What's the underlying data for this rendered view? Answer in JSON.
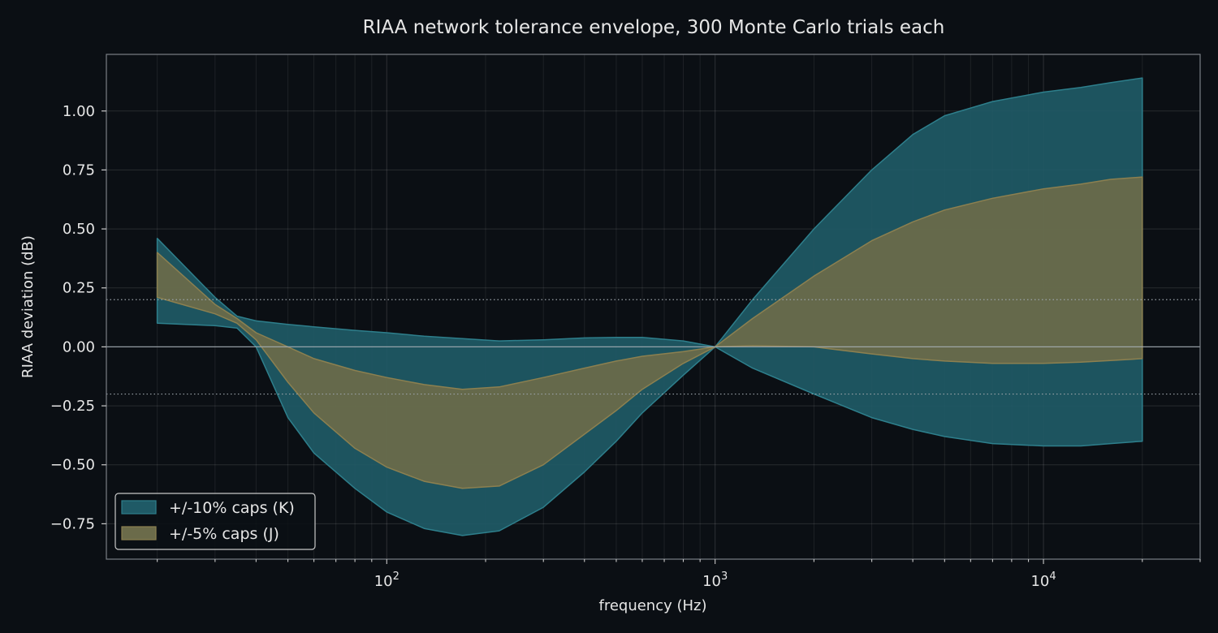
{
  "chart_data": {
    "type": "area",
    "title": "RIAA network tolerance envelope, 300 Monte Carlo trials each",
    "xlabel": "frequency (Hz)",
    "ylabel": "RIAA deviation (dB)",
    "x_scale": "log",
    "xlim": [
      14,
      30000
    ],
    "ylim": [
      -0.9,
      1.24
    ],
    "x_ticks": [
      {
        "value": 100,
        "base": "10",
        "exp": "2"
      },
      {
        "value": 1000,
        "base": "10",
        "exp": "3"
      },
      {
        "value": 10000,
        "base": "10",
        "exp": "4"
      }
    ],
    "y_ticks": [
      {
        "value": 1.0,
        "label": "1.00"
      },
      {
        "value": 0.75,
        "label": "0.75"
      },
      {
        "value": 0.5,
        "label": "0.50"
      },
      {
        "value": 0.25,
        "label": "0.25"
      },
      {
        "value": 0.0,
        "label": "0.00"
      },
      {
        "value": -0.25,
        "label": "−0.25"
      },
      {
        "value": -0.5,
        "label": "−0.50"
      },
      {
        "value": -0.75,
        "label": "−0.75"
      }
    ],
    "reference_lines": [
      {
        "y": 0.0,
        "style": "solid"
      },
      {
        "y": 0.2,
        "style": "dotted"
      },
      {
        "y": -0.2,
        "style": "dotted"
      }
    ],
    "grid": true,
    "legend_position": "lower-left",
    "series": [
      {
        "name": "+/-10% caps (K)",
        "color": "#1f5a66",
        "edge_color": "#2e7f8c",
        "x": [
          20,
          30,
          35,
          40,
          50,
          60,
          80,
          100,
          130,
          170,
          220,
          300,
          400,
          500,
          600,
          800,
          1000,
          1300,
          2000,
          3000,
          4000,
          5000,
          7000,
          10000,
          13000,
          16000,
          20000
        ],
        "upper": [
          0.46,
          0.21,
          0.13,
          0.11,
          0.095,
          0.085,
          0.07,
          0.06,
          0.045,
          0.035,
          0.025,
          0.03,
          0.038,
          0.04,
          0.04,
          0.025,
          0.0,
          0.2,
          0.5,
          0.75,
          0.9,
          0.98,
          1.04,
          1.08,
          1.1,
          1.12,
          1.14
        ],
        "lower": [
          0.1,
          0.09,
          0.08,
          0.0,
          -0.3,
          -0.45,
          -0.6,
          -0.7,
          -0.77,
          -0.8,
          -0.78,
          -0.68,
          -0.53,
          -0.4,
          -0.28,
          -0.12,
          0.0,
          -0.09,
          -0.2,
          -0.3,
          -0.35,
          -0.38,
          -0.41,
          -0.42,
          -0.42,
          -0.41,
          -0.4
        ]
      },
      {
        "name": "+/-5% caps (J)",
        "color": "#6b6b4a",
        "edge_color": "#8c8050",
        "x": [
          20,
          30,
          35,
          40,
          50,
          60,
          80,
          100,
          130,
          170,
          220,
          300,
          400,
          500,
          600,
          800,
          1000,
          1300,
          2000,
          3000,
          4000,
          5000,
          7000,
          10000,
          13000,
          16000,
          20000
        ],
        "upper": [
          0.4,
          0.18,
          0.12,
          0.06,
          0.0,
          -0.05,
          -0.1,
          -0.13,
          -0.16,
          -0.18,
          -0.17,
          -0.13,
          -0.09,
          -0.06,
          -0.04,
          -0.02,
          0.0,
          0.12,
          0.3,
          0.45,
          0.53,
          0.58,
          0.63,
          0.67,
          0.69,
          0.71,
          0.72
        ],
        "lower": [
          0.21,
          0.14,
          0.1,
          0.03,
          -0.15,
          -0.28,
          -0.43,
          -0.51,
          -0.57,
          -0.6,
          -0.59,
          -0.5,
          -0.37,
          -0.27,
          -0.18,
          -0.07,
          0.0,
          0.005,
          0.0,
          -0.03,
          -0.05,
          -0.06,
          -0.07,
          -0.07,
          -0.065,
          -0.058,
          -0.05
        ]
      }
    ]
  }
}
